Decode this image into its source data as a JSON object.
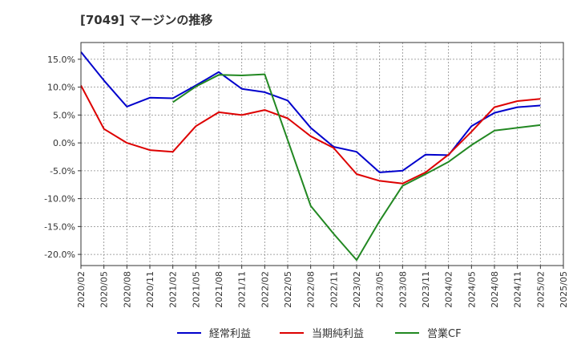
{
  "chart_data": {
    "type": "line",
    "title": "[7049]  マージンの推移",
    "x": [
      "2020/02",
      "2020/05",
      "2020/08",
      "2020/11",
      "2021/02",
      "2021/05",
      "2021/08",
      "2021/11",
      "2022/02",
      "2022/05",
      "2022/08",
      "2022/11",
      "2023/02",
      "2023/05",
      "2023/08",
      "2023/11",
      "2024/02",
      "2024/05",
      "2024/08",
      "2024/11",
      "2025/02",
      "2025/05"
    ],
    "y_ticks": [
      "15.0%",
      "10.0%",
      "5.0%",
      "0.0%",
      "-5.0%",
      "-10.0%",
      "-15.0%",
      "-20.0%"
    ],
    "y_tick_values": [
      15,
      10,
      5,
      0,
      -5,
      -10,
      -15,
      -20
    ],
    "ylim": [
      -22,
      18
    ],
    "grid": true,
    "legend_position": "bottom",
    "series": [
      {
        "name": "経常利益",
        "color": "#0000cc",
        "values": [
          16.3,
          11.2,
          6.5,
          8.1,
          8.0,
          10.3,
          12.7,
          9.7,
          9.1,
          7.6,
          2.7,
          -0.7,
          -1.6,
          -5.3,
          -5.0,
          -2.1,
          -2.2,
          3.0,
          5.4,
          6.4,
          6.7,
          null
        ]
      },
      {
        "name": "当期純利益",
        "color": "#dd0000",
        "values": [
          10.3,
          2.5,
          0.0,
          -1.3,
          -1.6,
          3.0,
          5.5,
          5.0,
          5.9,
          4.4,
          1.2,
          -0.9,
          -5.6,
          -6.8,
          -7.3,
          -5.3,
          -2.1,
          2.0,
          6.4,
          7.5,
          7.9,
          null
        ]
      },
      {
        "name": "営業CF",
        "color": "#228822",
        "values": [
          null,
          null,
          null,
          null,
          7.3,
          10.1,
          12.2,
          12.1,
          12.3,
          0.5,
          -11.3,
          -16.3,
          -21.0,
          -14.0,
          -7.7,
          -5.6,
          -3.4,
          -0.4,
          2.2,
          2.7,
          3.2,
          null
        ]
      }
    ]
  }
}
